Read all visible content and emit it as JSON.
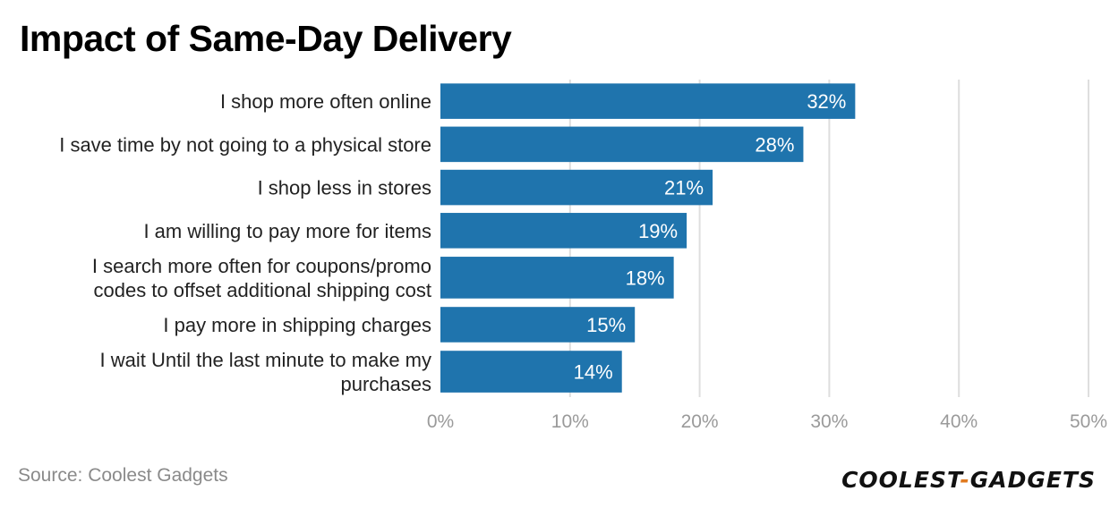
{
  "title": "Impact of Same-Day Delivery",
  "source": "Source: Coolest Gadgets",
  "brand": {
    "left": "COOLEST",
    "sep": "-",
    "right": "GADGETS"
  },
  "colors": {
    "bar": "#1f74ad",
    "grid": "#dedede",
    "tick": "#9a9a9a",
    "label": "#222222",
    "value": "#ffffff"
  },
  "chart_data": {
    "type": "bar",
    "orientation": "horizontal",
    "categories": [
      [
        "I shop more often online"
      ],
      [
        "I save time by not going to a physical store"
      ],
      [
        "I shop less in stores"
      ],
      [
        "I am willing to pay more for items"
      ],
      [
        "I search more often for coupons/promo",
        "codes to offset additional shipping cost"
      ],
      [
        "I pay more in shipping charges"
      ],
      [
        "I wait Until the last minute to make my",
        "purchases"
      ]
    ],
    "values": [
      32,
      28,
      21,
      19,
      18,
      15,
      14
    ],
    "value_labels": [
      "32%",
      "28%",
      "21%",
      "19%",
      "18%",
      "15%",
      "14%"
    ],
    "xticks": [
      0,
      10,
      20,
      30,
      40,
      50
    ],
    "xtick_labels": [
      "0%",
      "10%",
      "20%",
      "30%",
      "40%",
      "50%"
    ],
    "xlim": [
      0,
      50
    ],
    "grid": true,
    "legend": "none"
  }
}
